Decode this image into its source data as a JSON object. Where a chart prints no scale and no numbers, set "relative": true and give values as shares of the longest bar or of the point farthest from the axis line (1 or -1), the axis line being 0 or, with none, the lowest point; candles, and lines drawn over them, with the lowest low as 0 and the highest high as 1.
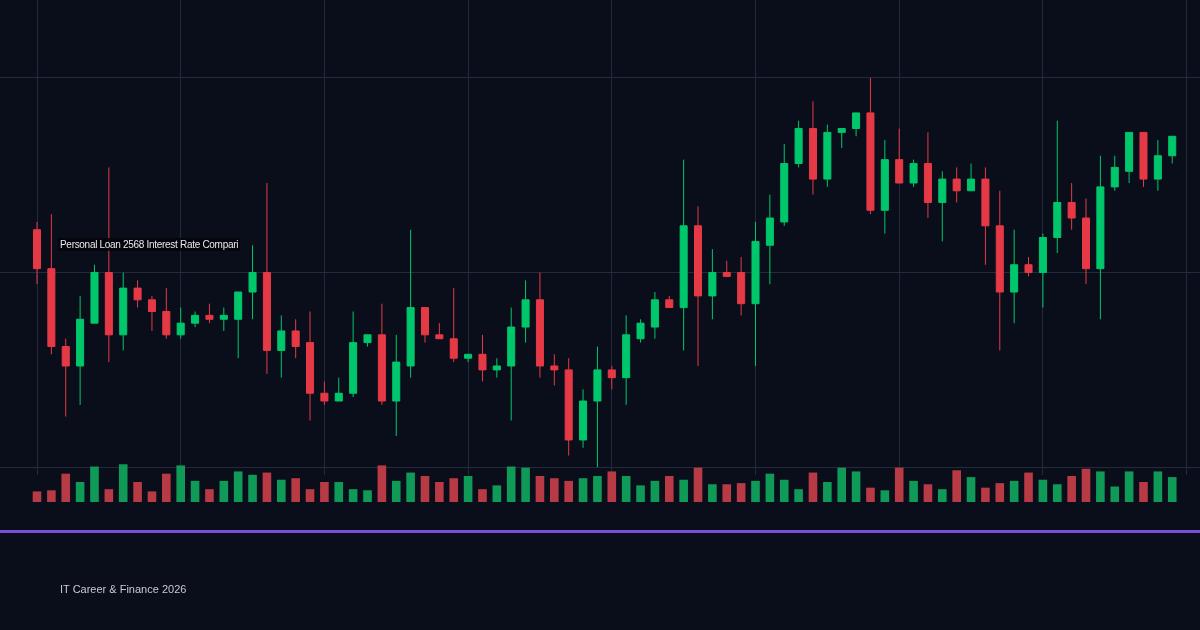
{
  "chart_data": [
    {
      "type": "candlestick",
      "title": "Personal Loan 2568 Interest Rate Compari",
      "annotations": [
        "IT Career & Finance 2026"
      ],
      "relative": true,
      "grid": true,
      "categories": [
        null,
        null,
        null,
        null,
        null,
        null,
        null,
        null,
        null,
        null,
        null,
        null,
        null,
        null,
        null,
        null,
        null,
        null,
        null,
        null,
        null,
        null,
        null,
        null,
        null,
        null,
        null,
        null,
        null,
        null,
        null,
        null,
        null,
        null,
        null,
        null,
        null,
        null,
        null,
        null,
        null,
        null,
        null,
        null,
        null,
        null,
        null,
        null,
        null,
        null,
        null,
        null,
        null,
        null,
        null,
        null,
        null,
        null,
        null,
        null,
        null,
        null,
        null,
        null,
        null,
        null,
        null,
        null,
        null,
        null,
        null,
        null,
        null,
        null,
        null,
        null,
        null,
        null,
        null,
        null
      ],
      "ohlc": [
        [
          0.61,
          0.63,
          0.47,
          0.51
        ],
        [
          0.51,
          0.65,
          0.29,
          0.31
        ],
        [
          0.31,
          0.33,
          0.13,
          0.26
        ],
        [
          0.26,
          0.44,
          0.16,
          0.38
        ],
        [
          0.37,
          0.52,
          0.37,
          0.5
        ],
        [
          0.5,
          0.77,
          0.27,
          0.34
        ],
        [
          0.34,
          0.5,
          0.3,
          0.46
        ],
        [
          0.46,
          0.48,
          0.41,
          0.43
        ],
        [
          0.43,
          0.44,
          0.35,
          0.4
        ],
        [
          0.4,
          0.46,
          0.33,
          0.34
        ],
        [
          0.34,
          0.41,
          0.33,
          0.37
        ],
        [
          0.37,
          0.4,
          0.36,
          0.39
        ],
        [
          0.39,
          0.42,
          0.37,
          0.38
        ],
        [
          0.38,
          0.41,
          0.35,
          0.39
        ],
        [
          0.38,
          0.45,
          0.28,
          0.45
        ],
        [
          0.45,
          0.57,
          0.38,
          0.5
        ],
        [
          0.5,
          0.73,
          0.24,
          0.3
        ],
        [
          0.3,
          0.39,
          0.23,
          0.35
        ],
        [
          0.35,
          0.38,
          0.28,
          0.31
        ],
        [
          0.32,
          0.4,
          0.12,
          0.19
        ],
        [
          0.19,
          0.22,
          0.16,
          0.17
        ],
        [
          0.17,
          0.23,
          0.17,
          0.19
        ],
        [
          0.19,
          0.4,
          0.18,
          0.32
        ],
        [
          0.32,
          0.34,
          0.31,
          0.34
        ],
        [
          0.34,
          0.42,
          0.16,
          0.17
        ],
        [
          0.17,
          0.34,
          0.08,
          0.27
        ],
        [
          0.26,
          0.61,
          0.23,
          0.41
        ],
        [
          0.41,
          0.41,
          0.32,
          0.34
        ],
        [
          0.34,
          0.37,
          0.33,
          0.33
        ],
        [
          0.33,
          0.46,
          0.27,
          0.28
        ],
        [
          0.28,
          0.29,
          0.27,
          0.29
        ],
        [
          0.29,
          0.34,
          0.22,
          0.25
        ],
        [
          0.25,
          0.28,
          0.23,
          0.26
        ],
        [
          0.26,
          0.41,
          0.12,
          0.36
        ],
        [
          0.36,
          0.48,
          0.32,
          0.43
        ],
        [
          0.43,
          0.5,
          0.23,
          0.26
        ],
        [
          0.26,
          0.29,
          0.21,
          0.25
        ],
        [
          0.25,
          0.28,
          0.03,
          0.07
        ],
        [
          0.07,
          0.2,
          0.05,
          0.17
        ],
        [
          0.17,
          0.31,
          0,
          0.25
        ],
        [
          0.25,
          0.26,
          0.2,
          0.23
        ],
        [
          0.23,
          0.39,
          0.16,
          0.34
        ],
        [
          0.33,
          0.38,
          0.32,
          0.37
        ],
        [
          0.36,
          0.45,
          0.33,
          0.43
        ],
        [
          0.43,
          0.44,
          0.41,
          0.41
        ],
        [
          0.41,
          0.79,
          0.3,
          0.62
        ],
        [
          0.62,
          0.67,
          0.26,
          0.44
        ],
        [
          0.44,
          0.56,
          0.38,
          0.5
        ],
        [
          0.5,
          0.53,
          0.49,
          0.49
        ],
        [
          0.5,
          0.54,
          0.39,
          0.42
        ],
        [
          0.42,
          0.63,
          0.26,
          0.58
        ],
        [
          0.57,
          0.7,
          0.47,
          0.64
        ],
        [
          0.63,
          0.83,
          0.62,
          0.78
        ],
        [
          0.78,
          0.89,
          0.77,
          0.87
        ],
        [
          0.87,
          0.94,
          0.7,
          0.74
        ],
        [
          0.74,
          0.88,
          0.72,
          0.86
        ],
        [
          0.86,
          0.87,
          0.82,
          0.87
        ],
        [
          0.87,
          0.91,
          0.85,
          0.91
        ],
        [
          0.91,
          1,
          0.65,
          0.66
        ],
        [
          0.66,
          0.84,
          0.6,
          0.79
        ],
        [
          0.79,
          0.87,
          0.73,
          0.73
        ],
        [
          0.73,
          0.79,
          0.72,
          0.78
        ],
        [
          0.78,
          0.86,
          0.64,
          0.68
        ],
        [
          0.68,
          0.76,
          0.58,
          0.74
        ],
        [
          0.74,
          0.77,
          0.68,
          0.71
        ],
        [
          0.71,
          0.78,
          0.71,
          0.74
        ],
        [
          0.74,
          0.77,
          0.52,
          0.62
        ],
        [
          0.62,
          0.71,
          0.3,
          0.45
        ],
        [
          0.45,
          0.61,
          0.37,
          0.52
        ],
        [
          0.52,
          0.54,
          0.49,
          0.5
        ],
        [
          0.5,
          0.6,
          0.41,
          0.59
        ],
        [
          0.59,
          0.89,
          0.55,
          0.68
        ],
        [
          0.68,
          0.73,
          0.61,
          0.64
        ],
        [
          0.64,
          0.69,
          0.47,
          0.51
        ],
        [
          0.51,
          0.8,
          0.38,
          0.72
        ],
        [
          0.72,
          0.8,
          0.71,
          0.77
        ],
        [
          0.76,
          0.86,
          0.73,
          0.86
        ],
        [
          0.86,
          0.86,
          0.72,
          0.74
        ],
        [
          0.74,
          0.84,
          0.71,
          0.8
        ],
        [
          0.8,
          0.85,
          0.78,
          0.85
        ]
      ],
      "colors": [
        "#e63946",
        "#e63946",
        "#e63946",
        "#00c76b",
        "#00c76b",
        "#e63946",
        "#00c76b",
        "#e63946",
        "#e63946",
        "#e63946",
        "#00c76b",
        "#00c76b",
        "#e63946",
        "#00c76b",
        "#00c76b",
        "#00c76b",
        "#e63946",
        "#00c76b",
        "#e63946",
        "#e63946",
        "#e63946",
        "#00c76b",
        "#00c76b",
        "#00c76b",
        "#e63946",
        "#00c76b",
        "#00c76b",
        "#e63946",
        "#e63946",
        "#e63946",
        "#00c76b",
        "#e63946",
        "#00c76b",
        "#00c76b",
        "#00c76b",
        "#e63946",
        "#e63946",
        "#e63946",
        "#00c76b",
        "#00c76b",
        "#e63946",
        "#00c76b",
        "#00c76b",
        "#00c76b",
        "#e63946",
        "#00c76b",
        "#e63946",
        "#00c76b",
        "#e63946",
        "#e63946",
        "#00c76b",
        "#00c76b",
        "#00c76b",
        "#00c76b",
        "#e63946",
        "#00c76b",
        "#00c76b",
        "#00c76b",
        "#e63946",
        "#00c76b",
        "#e63946",
        "#00c76b",
        "#e63946",
        "#00c76b",
        "#e63946",
        "#00c76b",
        "#e63946",
        "#e63946",
        "#00c76b",
        "#e63946",
        "#00c76b",
        "#00c76b",
        "#e63946",
        "#e63946",
        "#00c76b",
        "#00c76b",
        "#00c76b",
        "#e63946",
        "#00c76b",
        "#00c76b"
      ]
    },
    {
      "type": "bar",
      "relative": true,
      "categories": [
        null,
        null,
        null,
        null,
        null,
        null,
        null,
        null,
        null,
        null,
        null,
        null,
        null,
        null,
        null,
        null,
        null,
        null,
        null,
        null,
        null,
        null,
        null,
        null,
        null,
        null,
        null,
        null,
        null,
        null,
        null,
        null,
        null,
        null,
        null,
        null,
        null,
        null,
        null,
        null,
        null,
        null,
        null,
        null,
        null,
        null,
        null,
        null,
        null,
        null,
        null,
        null,
        null,
        null,
        null,
        null,
        null,
        null,
        null,
        null,
        null,
        null,
        null,
        null,
        null,
        null,
        null,
        null,
        null,
        null,
        null,
        null,
        null,
        null,
        null,
        null,
        null,
        null,
        null,
        null
      ],
      "values": [
        0.28,
        0.31,
        0.75,
        0.53,
        0.94,
        0.34,
        1,
        0.53,
        0.28,
        0.75,
        0.97,
        0.56,
        0.34,
        0.56,
        0.81,
        0.72,
        0.78,
        0.59,
        0.63,
        0.34,
        0.53,
        0.53,
        0.34,
        0.31,
        0.97,
        0.56,
        0.78,
        0.69,
        0.53,
        0.63,
        0.69,
        0.34,
        0.44,
        0.94,
        0.91,
        0.69,
        0.63,
        0.56,
        0.63,
        0.69,
        0.81,
        0.69,
        0.44,
        0.56,
        0.69,
        0.59,
        0.91,
        0.47,
        0.47,
        0.5,
        0.56,
        0.75,
        0.59,
        0.34,
        0.78,
        0.53,
        0.91,
        0.81,
        0.38,
        0.31,
        0.91,
        0.56,
        0.47,
        0.34,
        0.84,
        0.66,
        0.38,
        0.5,
        0.56,
        0.78,
        0.59,
        0.47,
        0.69,
        0.88,
        0.81,
        0.41,
        0.81,
        0.53,
        0.81,
        0.66
      ],
      "colors": [
        "#b83a44",
        "#b83a44",
        "#b83a44",
        "#0f9a58",
        "#0f9a58",
        "#b83a44",
        "#0f9a58",
        "#b83a44",
        "#b83a44",
        "#b83a44",
        "#0f9a58",
        "#0f9a58",
        "#b83a44",
        "#0f9a58",
        "#0f9a58",
        "#0f9a58",
        "#b83a44",
        "#0f9a58",
        "#b83a44",
        "#b83a44",
        "#b83a44",
        "#0f9a58",
        "#0f9a58",
        "#0f9a58",
        "#b83a44",
        "#0f9a58",
        "#0f9a58",
        "#b83a44",
        "#b83a44",
        "#b83a44",
        "#0f9a58",
        "#b83a44",
        "#0f9a58",
        "#0f9a58",
        "#0f9a58",
        "#b83a44",
        "#b83a44",
        "#b83a44",
        "#0f9a58",
        "#0f9a58",
        "#b83a44",
        "#0f9a58",
        "#0f9a58",
        "#0f9a58",
        "#b83a44",
        "#0f9a58",
        "#b83a44",
        "#0f9a58",
        "#b83a44",
        "#b83a44",
        "#0f9a58",
        "#0f9a58",
        "#0f9a58",
        "#0f9a58",
        "#b83a44",
        "#0f9a58",
        "#0f9a58",
        "#0f9a58",
        "#b83a44",
        "#0f9a58",
        "#b83a44",
        "#0f9a58",
        "#b83a44",
        "#0f9a58",
        "#b83a44",
        "#0f9a58",
        "#b83a44",
        "#b83a44",
        "#0f9a58",
        "#b83a44",
        "#0f9a58",
        "#0f9a58",
        "#b83a44",
        "#b83a44",
        "#0f9a58",
        "#0f9a58",
        "#0f9a58",
        "#b83a44",
        "#0f9a58",
        "#0f9a58"
      ]
    }
  ]
}
